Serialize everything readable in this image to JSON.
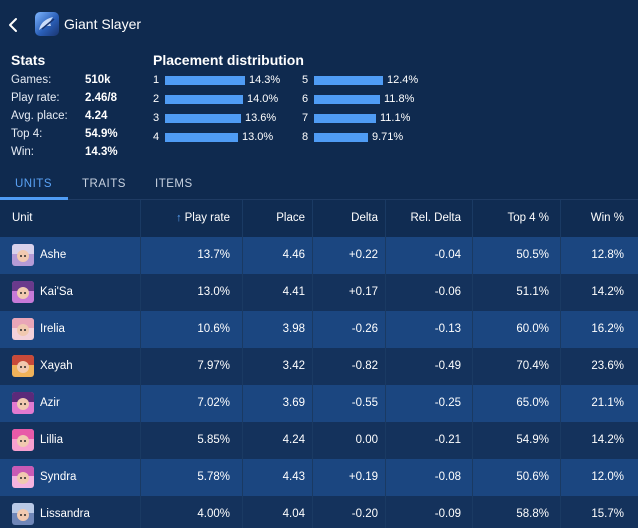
{
  "header": {
    "title": "Giant Slayer"
  },
  "stats": {
    "title": "Stats",
    "items": [
      {
        "label": "Games:",
        "value": "510k"
      },
      {
        "label": "Play rate:",
        "value": "2.46/8"
      },
      {
        "label": "Avg. place:",
        "value": "4.24"
      },
      {
        "label": "Top 4:",
        "value": "54.9%"
      },
      {
        "label": "Win:",
        "value": "14.3%"
      }
    ]
  },
  "distribution": {
    "title": "Placement distribution",
    "items": [
      {
        "place": "1",
        "pct": "14.3%",
        "value": 14.3
      },
      {
        "place": "2",
        "pct": "14.0%",
        "value": 14.0
      },
      {
        "place": "3",
        "pct": "13.6%",
        "value": 13.6
      },
      {
        "place": "4",
        "pct": "13.0%",
        "value": 13.0
      },
      {
        "place": "5",
        "pct": "12.4%",
        "value": 12.4
      },
      {
        "place": "6",
        "pct": "11.8%",
        "value": 11.8
      },
      {
        "place": "7",
        "pct": "11.1%",
        "value": 11.1
      },
      {
        "place": "8",
        "pct": "9.71%",
        "value": 9.71
      }
    ]
  },
  "tabs": [
    {
      "label": "UNITS",
      "active": true
    },
    {
      "label": "TRAITS",
      "active": false
    },
    {
      "label": "ITEMS",
      "active": false
    }
  ],
  "table": {
    "columns": [
      "Unit",
      "Play rate",
      "Place",
      "Delta",
      "Rel. Delta",
      "Top 4 %",
      "Win %"
    ],
    "sorted_by": "Play rate",
    "rows": [
      {
        "unit": "Ashe",
        "play_rate": "13.7%",
        "place": "4.46",
        "delta": "+0.22",
        "rel_delta": "-0.04",
        "top4": "50.5%",
        "win": "12.8%",
        "hair": "#d9d2ec",
        "accent": "#b59bd6"
      },
      {
        "unit": "Kai'Sa",
        "play_rate": "13.0%",
        "place": "4.41",
        "delta": "+0.17",
        "rel_delta": "-0.06",
        "top4": "51.1%",
        "win": "14.2%",
        "hair": "#6a3a8c",
        "accent": "#c77ad8"
      },
      {
        "unit": "Irelia",
        "play_rate": "10.6%",
        "place": "3.98",
        "delta": "-0.26",
        "rel_delta": "-0.13",
        "top4": "60.0%",
        "win": "16.2%",
        "hair": "#e9a6b8",
        "accent": "#f3d1da"
      },
      {
        "unit": "Xayah",
        "play_rate": "7.97%",
        "place": "3.42",
        "delta": "-0.82",
        "rel_delta": "-0.49",
        "top4": "70.4%",
        "win": "23.6%",
        "hair": "#c84a3a",
        "accent": "#f0b25a"
      },
      {
        "unit": "Azir",
        "play_rate": "7.02%",
        "place": "3.69",
        "delta": "-0.55",
        "rel_delta": "-0.25",
        "top4": "65.0%",
        "win": "21.1%",
        "hair": "#5b2a7a",
        "accent": "#e27ad0"
      },
      {
        "unit": "Lillia",
        "play_rate": "5.85%",
        "place": "4.24",
        "delta": "0.00",
        "rel_delta": "-0.21",
        "top4": "54.9%",
        "win": "14.2%",
        "hair": "#e85aa8",
        "accent": "#f7a0cf"
      },
      {
        "unit": "Syndra",
        "play_rate": "5.78%",
        "place": "4.43",
        "delta": "+0.19",
        "rel_delta": "-0.08",
        "top4": "50.6%",
        "win": "12.0%",
        "hair": "#c95ab5",
        "accent": "#f5b3e0"
      },
      {
        "unit": "Lissandra",
        "play_rate": "4.00%",
        "place": "4.04",
        "delta": "-0.20",
        "rel_delta": "-0.09",
        "top4": "58.8%",
        "win": "15.7%",
        "hair": "#b9c9e6",
        "accent": "#6f86b8"
      }
    ]
  }
}
